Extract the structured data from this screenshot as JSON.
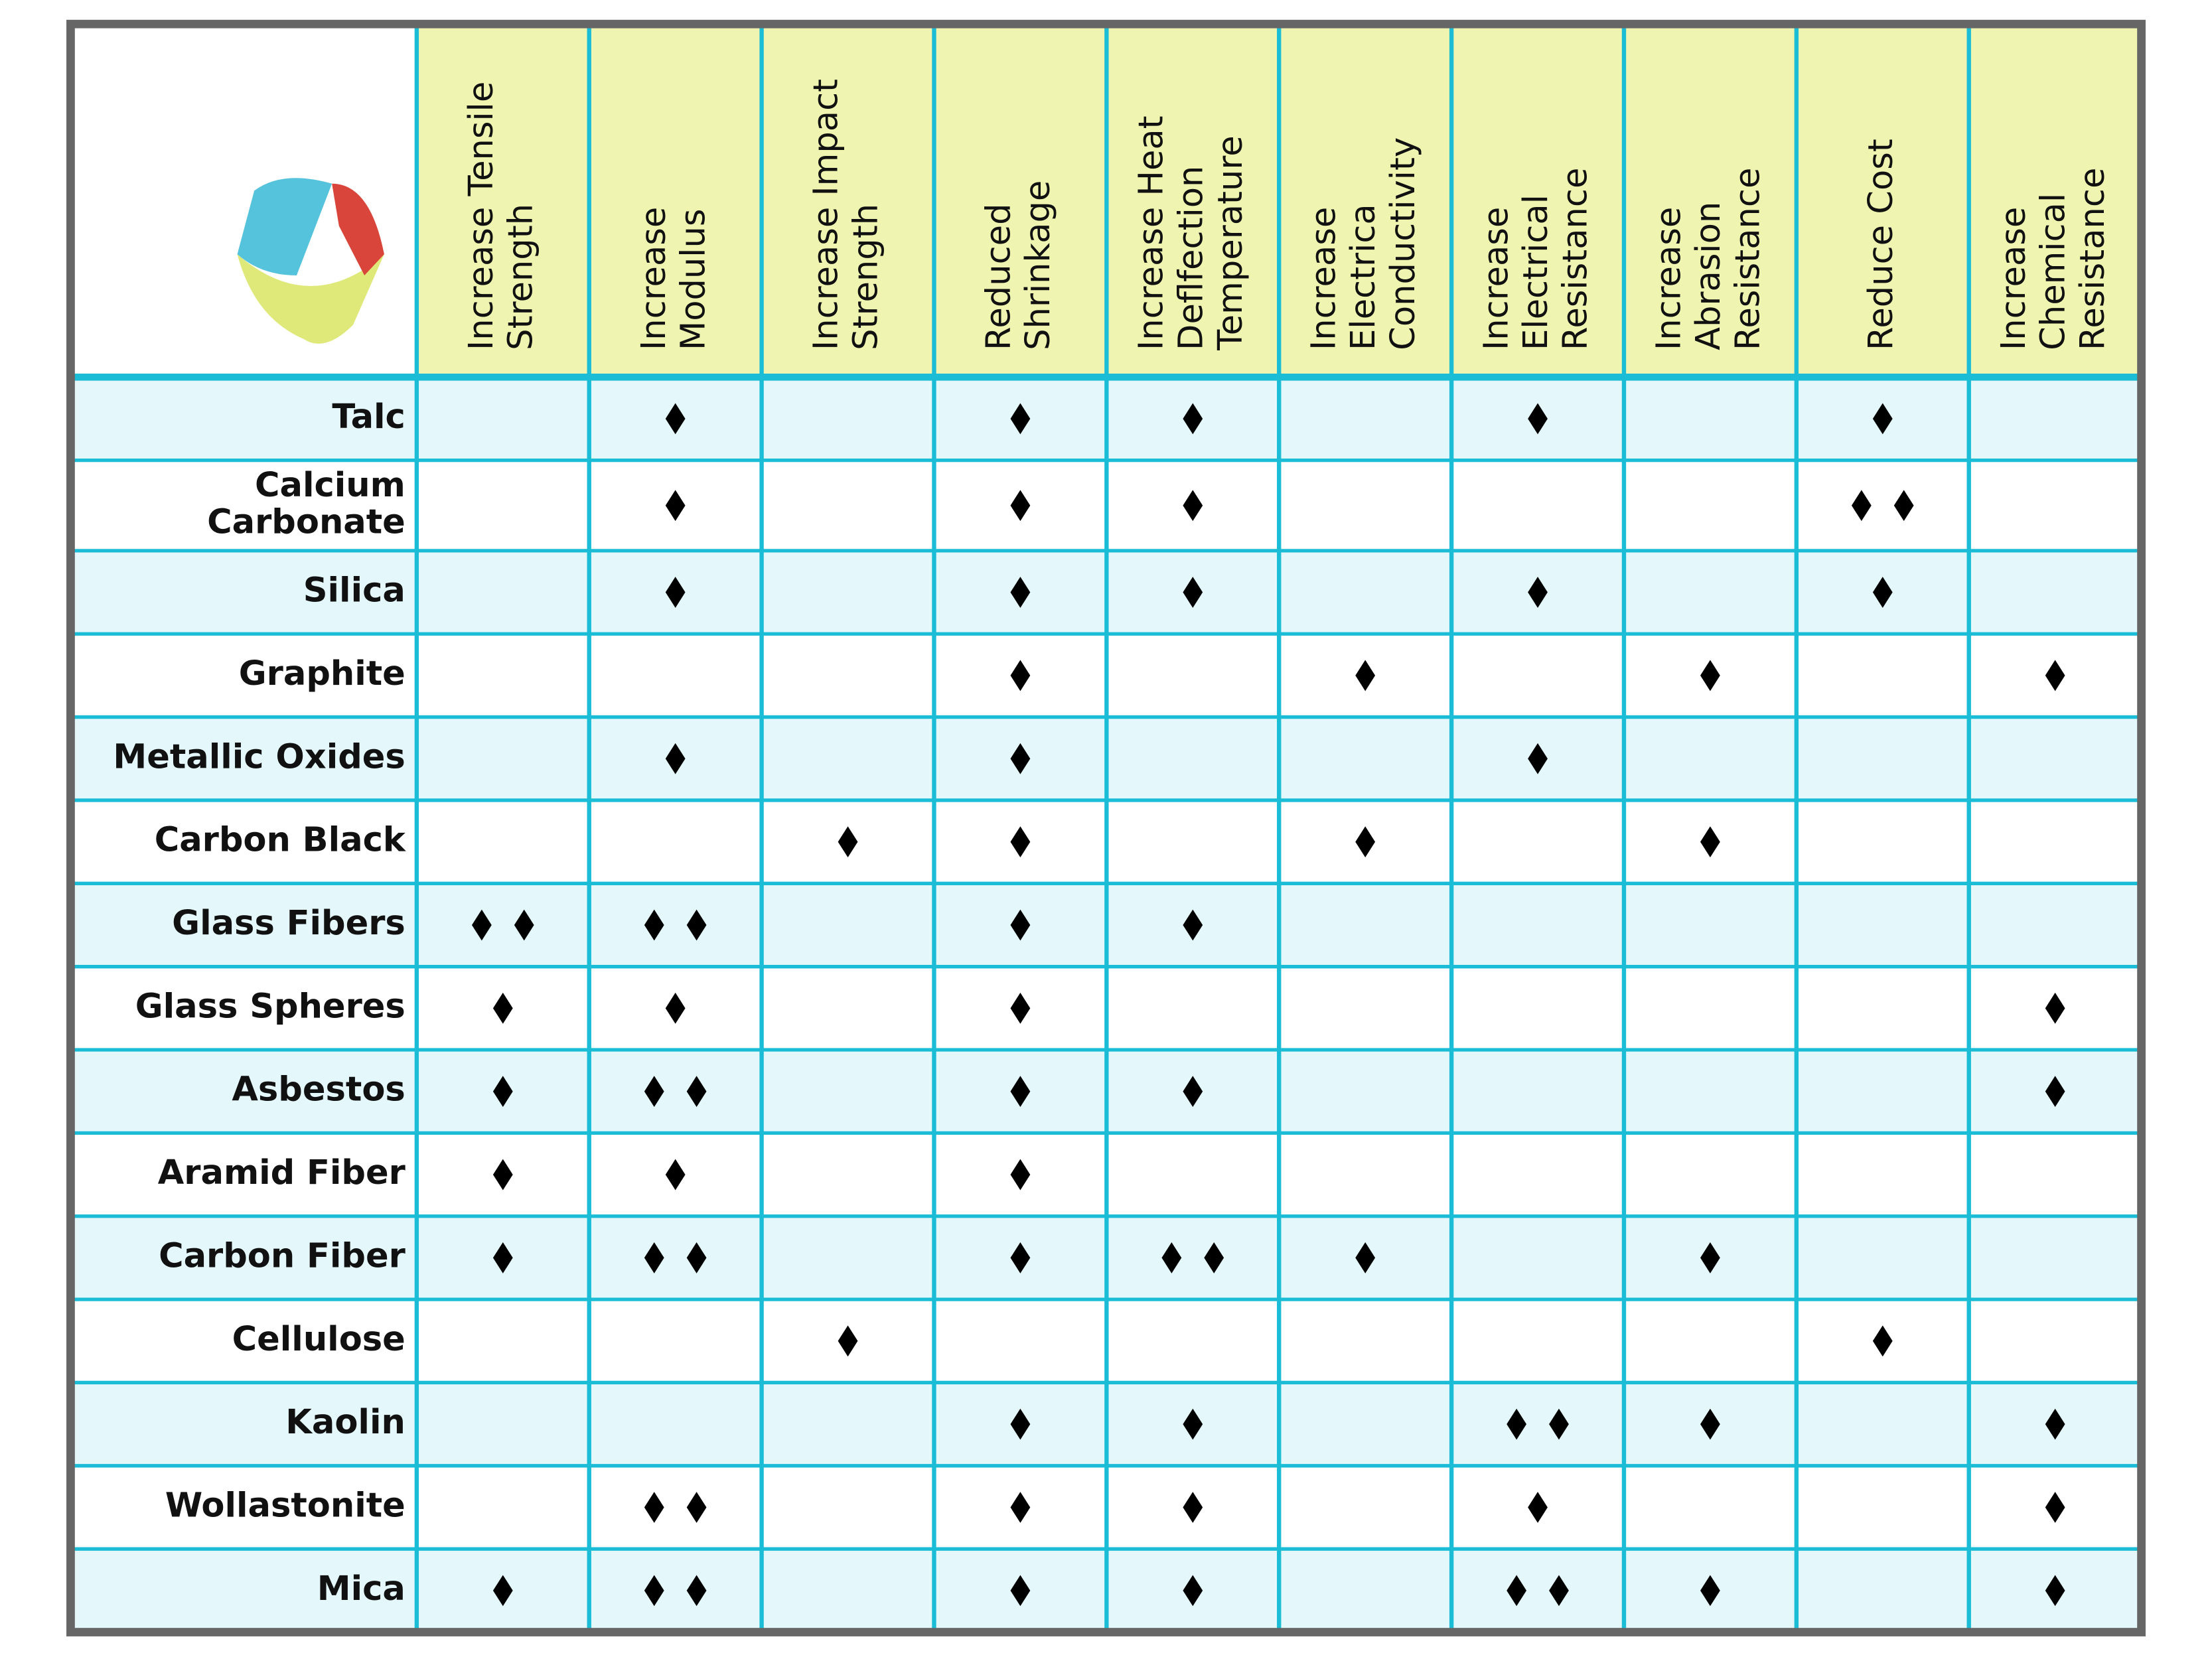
{
  "table": {
    "columns": [
      [
        "Increase Tensile",
        "Strength"
      ],
      [
        "Increase",
        "Modulus"
      ],
      [
        "Increase Impact",
        "Strength"
      ],
      [
        "Reduced",
        "Shrinkage"
      ],
      [
        "Increase Heat",
        "Deflfection",
        "Temperature"
      ],
      [
        "Increase",
        "Electrica",
        "Conductivity"
      ],
      [
        "Increase",
        "Electrical",
        "Resistance"
      ],
      [
        "Increase",
        "Abrasion",
        "Resistance"
      ],
      [
        "Reduce Cost"
      ],
      [
        "Increase",
        "Chemical",
        "Resistance"
      ]
    ],
    "rows": [
      {
        "label": [
          "Talc"
        ],
        "cells": [
          0,
          1,
          0,
          1,
          1,
          0,
          1,
          0,
          1,
          0
        ]
      },
      {
        "label": [
          "Calcium",
          "Carbonate"
        ],
        "cells": [
          0,
          1,
          0,
          1,
          1,
          0,
          0,
          0,
          2,
          0
        ]
      },
      {
        "label": [
          "Silica"
        ],
        "cells": [
          0,
          1,
          0,
          1,
          1,
          0,
          1,
          0,
          1,
          0
        ]
      },
      {
        "label": [
          "Graphite"
        ],
        "cells": [
          0,
          0,
          0,
          1,
          0,
          1,
          0,
          1,
          0,
          1
        ]
      },
      {
        "label": [
          "Metallic Oxides"
        ],
        "cells": [
          0,
          1,
          0,
          1,
          0,
          0,
          1,
          0,
          0,
          0
        ]
      },
      {
        "label": [
          "Carbon Black"
        ],
        "cells": [
          0,
          0,
          1,
          1,
          0,
          1,
          0,
          1,
          0,
          0
        ]
      },
      {
        "label": [
          "Glass Fibers"
        ],
        "cells": [
          2,
          2,
          0,
          1,
          1,
          0,
          0,
          0,
          0,
          0
        ]
      },
      {
        "label": [
          "Glass Spheres"
        ],
        "cells": [
          1,
          1,
          0,
          1,
          0,
          0,
          0,
          0,
          0,
          1
        ]
      },
      {
        "label": [
          "Asbestos"
        ],
        "cells": [
          1,
          2,
          0,
          1,
          1,
          0,
          0,
          0,
          0,
          1
        ]
      },
      {
        "label": [
          "Aramid Fiber"
        ],
        "cells": [
          1,
          1,
          0,
          1,
          0,
          0,
          0,
          0,
          0,
          0
        ]
      },
      {
        "label": [
          "Carbon Fiber"
        ],
        "cells": [
          1,
          2,
          0,
          1,
          2,
          1,
          0,
          1,
          0,
          0
        ]
      },
      {
        "label": [
          "Cellulose"
        ],
        "cells": [
          0,
          0,
          1,
          0,
          0,
          0,
          0,
          0,
          1,
          0
        ]
      },
      {
        "label": [
          "Kaolin"
        ],
        "cells": [
          0,
          0,
          0,
          1,
          1,
          0,
          2,
          1,
          0,
          1
        ]
      },
      {
        "label": [
          "Wollastonite"
        ],
        "cells": [
          0,
          2,
          0,
          1,
          1,
          0,
          1,
          0,
          0,
          1
        ]
      },
      {
        "label": [
          "Mica"
        ],
        "cells": [
          1,
          2,
          0,
          1,
          1,
          0,
          2,
          1,
          0,
          1
        ]
      }
    ]
  }
}
